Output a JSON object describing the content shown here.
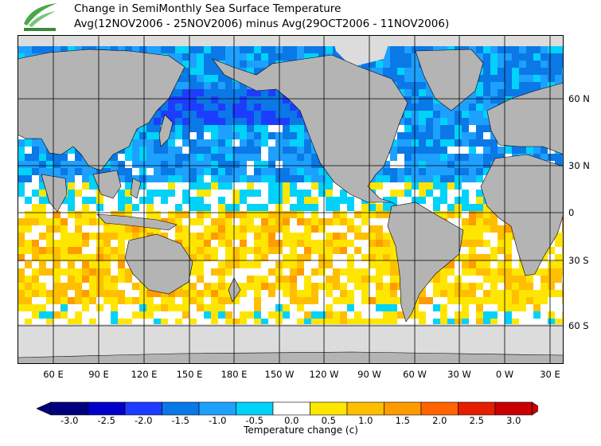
{
  "header": {
    "title_line1": "Change in SemiMonthly Sea Surface Temperature",
    "title_line2": "Avg(12NOV2006 - 25NOV2006) minus Avg(29OCT2006 - 11NOV2006)",
    "logo_icon": "hko-logo-icon"
  },
  "map": {
    "x_axis_labels": [
      "60 E",
      "90 E",
      "120 E",
      "150 E",
      "180 E",
      "150 W",
      "120 W",
      "90 W",
      "60 W",
      "30 W",
      "0 W",
      "30 E"
    ],
    "y_axis_labels": [
      "60 N",
      "30 N",
      "0",
      "30 S",
      "60 S"
    ],
    "land_color": "#b4b4b4",
    "ice_color": "#dcdcdc",
    "grid_color": "#000000"
  },
  "colorbar": {
    "title": "Temperature change  (c)",
    "labels": [
      "-3.0",
      "-2.5",
      "-2.0",
      "-1.5",
      "-1.0",
      "-0.5",
      "0.0",
      "0.5",
      "1.0",
      "1.5",
      "2.0",
      "2.5",
      "3.0"
    ],
    "colors": [
      "#00007f",
      "#0000c8",
      "#1e3cff",
      "#0a78e6",
      "#1ea0ff",
      "#00d2fa",
      "#ffffff",
      "#ffe600",
      "#ffbe00",
      "#ff9b00",
      "#ff6400",
      "#e61e00",
      "#c80000"
    ]
  }
}
